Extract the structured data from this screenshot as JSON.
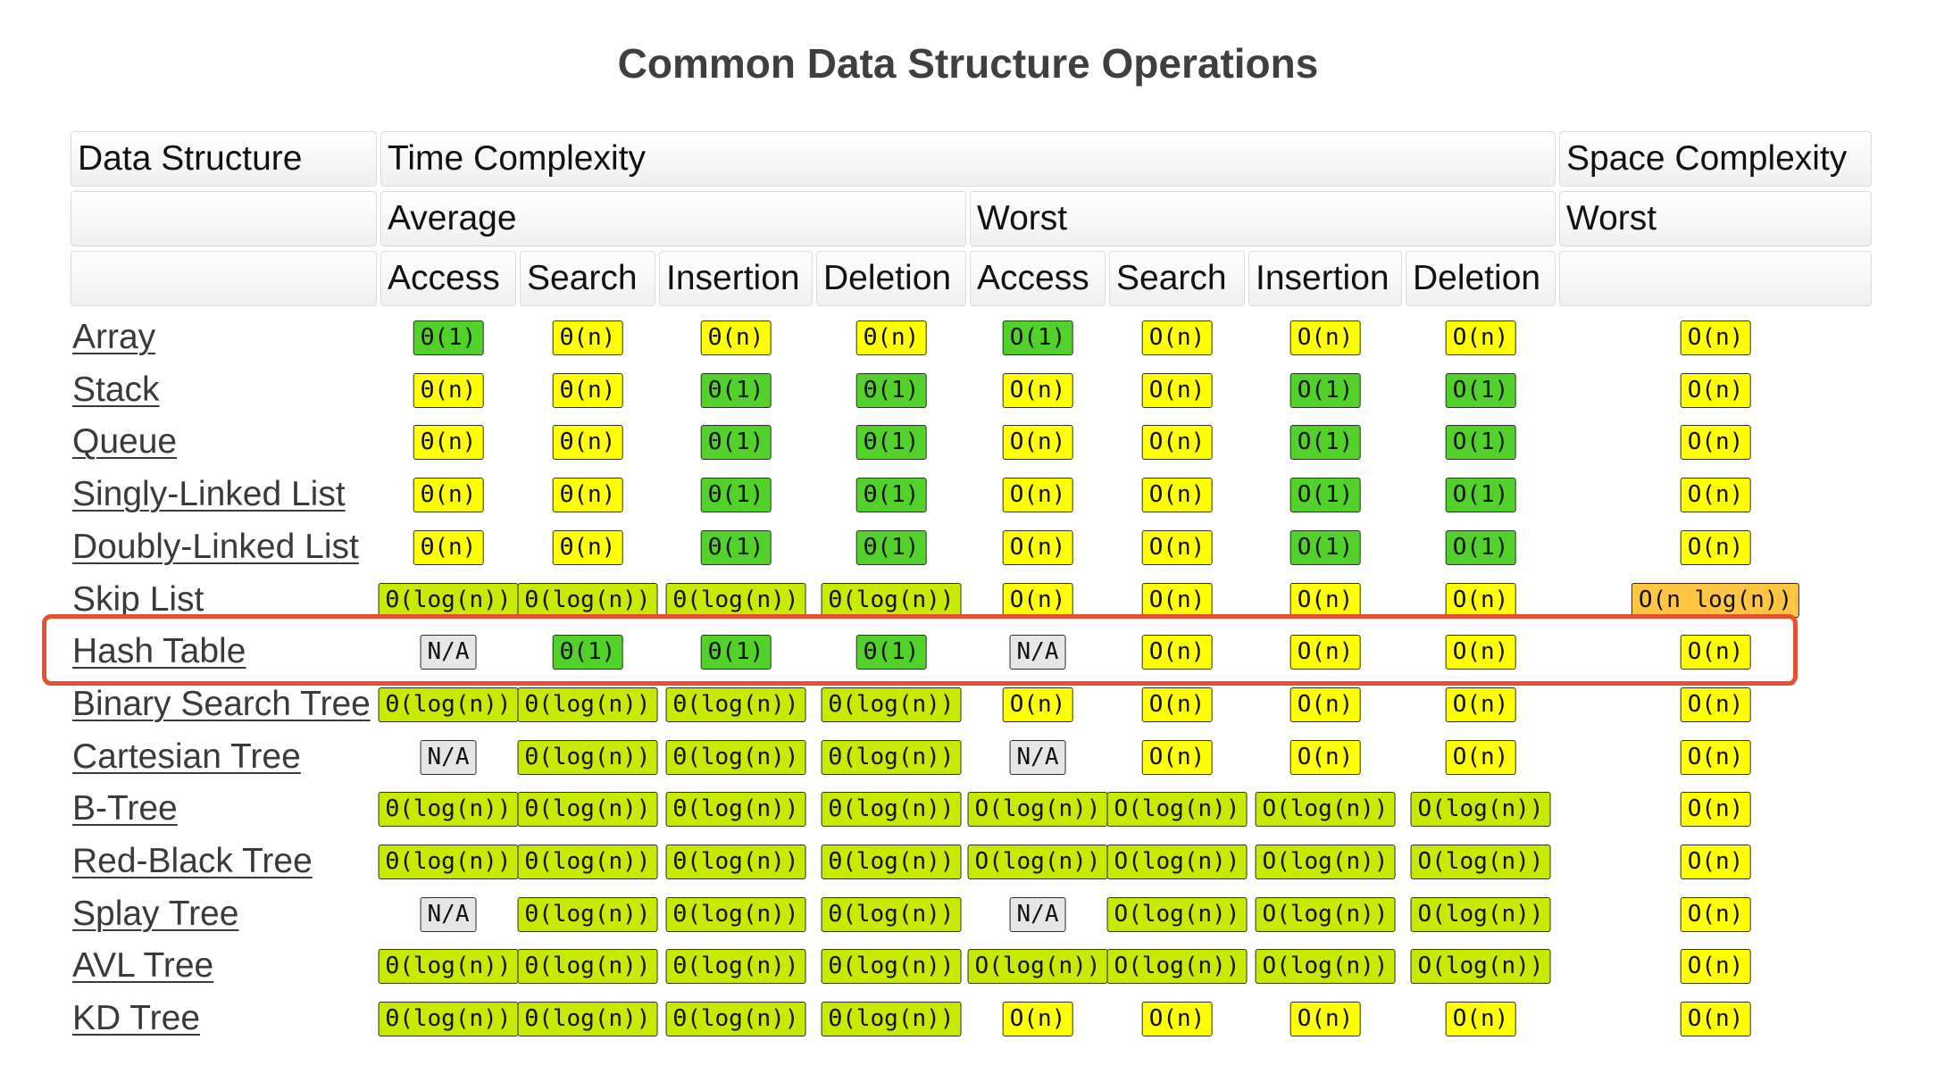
{
  "title": "Common Data Structure Operations",
  "header": {
    "data_structure": "Data Structure",
    "time_complexity": "Time Complexity",
    "space_complexity": "Space Complexity",
    "average": "Average",
    "worst": "Worst",
    "space_worst": "Worst",
    "ops": [
      "Access",
      "Search",
      "Insertion",
      "Deletion",
      "Access",
      "Search",
      "Insertion",
      "Deletion"
    ]
  },
  "rating_colors": {
    "good": "#53d12b",
    "fair": "#ffff00",
    "ok": "#c8ea00",
    "bad": "#ffc543",
    "na": "#e6e6e6"
  },
  "highlight_color": "#e8512f",
  "highlighted_row": "Hash Table",
  "rows": [
    {
      "name": "Array",
      "cells": [
        {
          "text": "Θ(1)",
          "rating": "good"
        },
        {
          "text": "Θ(n)",
          "rating": "fair"
        },
        {
          "text": "Θ(n)",
          "rating": "fair"
        },
        {
          "text": "Θ(n)",
          "rating": "fair"
        },
        {
          "text": "O(1)",
          "rating": "good"
        },
        {
          "text": "O(n)",
          "rating": "fair"
        },
        {
          "text": "O(n)",
          "rating": "fair"
        },
        {
          "text": "O(n)",
          "rating": "fair"
        },
        {
          "text": "O(n)",
          "rating": "fair"
        }
      ]
    },
    {
      "name": "Stack",
      "cells": [
        {
          "text": "Θ(n)",
          "rating": "fair"
        },
        {
          "text": "Θ(n)",
          "rating": "fair"
        },
        {
          "text": "Θ(1)",
          "rating": "good"
        },
        {
          "text": "Θ(1)",
          "rating": "good"
        },
        {
          "text": "O(n)",
          "rating": "fair"
        },
        {
          "text": "O(n)",
          "rating": "fair"
        },
        {
          "text": "O(1)",
          "rating": "good"
        },
        {
          "text": "O(1)",
          "rating": "good"
        },
        {
          "text": "O(n)",
          "rating": "fair"
        }
      ]
    },
    {
      "name": "Queue",
      "cells": [
        {
          "text": "Θ(n)",
          "rating": "fair"
        },
        {
          "text": "Θ(n)",
          "rating": "fair"
        },
        {
          "text": "Θ(1)",
          "rating": "good"
        },
        {
          "text": "Θ(1)",
          "rating": "good"
        },
        {
          "text": "O(n)",
          "rating": "fair"
        },
        {
          "text": "O(n)",
          "rating": "fair"
        },
        {
          "text": "O(1)",
          "rating": "good"
        },
        {
          "text": "O(1)",
          "rating": "good"
        },
        {
          "text": "O(n)",
          "rating": "fair"
        }
      ]
    },
    {
      "name": "Singly-Linked List",
      "cells": [
        {
          "text": "Θ(n)",
          "rating": "fair"
        },
        {
          "text": "Θ(n)",
          "rating": "fair"
        },
        {
          "text": "Θ(1)",
          "rating": "good"
        },
        {
          "text": "Θ(1)",
          "rating": "good"
        },
        {
          "text": "O(n)",
          "rating": "fair"
        },
        {
          "text": "O(n)",
          "rating": "fair"
        },
        {
          "text": "O(1)",
          "rating": "good"
        },
        {
          "text": "O(1)",
          "rating": "good"
        },
        {
          "text": "O(n)",
          "rating": "fair"
        }
      ]
    },
    {
      "name": "Doubly-Linked List",
      "cells": [
        {
          "text": "Θ(n)",
          "rating": "fair"
        },
        {
          "text": "Θ(n)",
          "rating": "fair"
        },
        {
          "text": "Θ(1)",
          "rating": "good"
        },
        {
          "text": "Θ(1)",
          "rating": "good"
        },
        {
          "text": "O(n)",
          "rating": "fair"
        },
        {
          "text": "O(n)",
          "rating": "fair"
        },
        {
          "text": "O(1)",
          "rating": "good"
        },
        {
          "text": "O(1)",
          "rating": "good"
        },
        {
          "text": "O(n)",
          "rating": "fair"
        }
      ]
    },
    {
      "name": "Skip List",
      "cells": [
        {
          "text": "Θ(log(n))",
          "rating": "ok"
        },
        {
          "text": "Θ(log(n))",
          "rating": "ok"
        },
        {
          "text": "Θ(log(n))",
          "rating": "ok"
        },
        {
          "text": "Θ(log(n))",
          "rating": "ok"
        },
        {
          "text": "O(n)",
          "rating": "fair"
        },
        {
          "text": "O(n)",
          "rating": "fair"
        },
        {
          "text": "O(n)",
          "rating": "fair"
        },
        {
          "text": "O(n)",
          "rating": "fair"
        },
        {
          "text": "O(n log(n))",
          "rating": "bad"
        }
      ]
    },
    {
      "name": "Hash Table",
      "cells": [
        {
          "text": "N/A",
          "rating": "na"
        },
        {
          "text": "Θ(1)",
          "rating": "good"
        },
        {
          "text": "Θ(1)",
          "rating": "good"
        },
        {
          "text": "Θ(1)",
          "rating": "good"
        },
        {
          "text": "N/A",
          "rating": "na"
        },
        {
          "text": "O(n)",
          "rating": "fair"
        },
        {
          "text": "O(n)",
          "rating": "fair"
        },
        {
          "text": "O(n)",
          "rating": "fair"
        },
        {
          "text": "O(n)",
          "rating": "fair"
        }
      ]
    },
    {
      "name": "Binary Search Tree",
      "cells": [
        {
          "text": "Θ(log(n))",
          "rating": "ok"
        },
        {
          "text": "Θ(log(n))",
          "rating": "ok"
        },
        {
          "text": "Θ(log(n))",
          "rating": "ok"
        },
        {
          "text": "Θ(log(n))",
          "rating": "ok"
        },
        {
          "text": "O(n)",
          "rating": "fair"
        },
        {
          "text": "O(n)",
          "rating": "fair"
        },
        {
          "text": "O(n)",
          "rating": "fair"
        },
        {
          "text": "O(n)",
          "rating": "fair"
        },
        {
          "text": "O(n)",
          "rating": "fair"
        }
      ]
    },
    {
      "name": "Cartesian Tree",
      "cells": [
        {
          "text": "N/A",
          "rating": "na"
        },
        {
          "text": "Θ(log(n))",
          "rating": "ok"
        },
        {
          "text": "Θ(log(n))",
          "rating": "ok"
        },
        {
          "text": "Θ(log(n))",
          "rating": "ok"
        },
        {
          "text": "N/A",
          "rating": "na"
        },
        {
          "text": "O(n)",
          "rating": "fair"
        },
        {
          "text": "O(n)",
          "rating": "fair"
        },
        {
          "text": "O(n)",
          "rating": "fair"
        },
        {
          "text": "O(n)",
          "rating": "fair"
        }
      ]
    },
    {
      "name": "B-Tree",
      "cells": [
        {
          "text": "Θ(log(n))",
          "rating": "ok"
        },
        {
          "text": "Θ(log(n))",
          "rating": "ok"
        },
        {
          "text": "Θ(log(n))",
          "rating": "ok"
        },
        {
          "text": "Θ(log(n))",
          "rating": "ok"
        },
        {
          "text": "O(log(n))",
          "rating": "ok"
        },
        {
          "text": "O(log(n))",
          "rating": "ok"
        },
        {
          "text": "O(log(n))",
          "rating": "ok"
        },
        {
          "text": "O(log(n))",
          "rating": "ok"
        },
        {
          "text": "O(n)",
          "rating": "fair"
        }
      ]
    },
    {
      "name": "Red-Black Tree",
      "cells": [
        {
          "text": "Θ(log(n))",
          "rating": "ok"
        },
        {
          "text": "Θ(log(n))",
          "rating": "ok"
        },
        {
          "text": "Θ(log(n))",
          "rating": "ok"
        },
        {
          "text": "Θ(log(n))",
          "rating": "ok"
        },
        {
          "text": "O(log(n))",
          "rating": "ok"
        },
        {
          "text": "O(log(n))",
          "rating": "ok"
        },
        {
          "text": "O(log(n))",
          "rating": "ok"
        },
        {
          "text": "O(log(n))",
          "rating": "ok"
        },
        {
          "text": "O(n)",
          "rating": "fair"
        }
      ]
    },
    {
      "name": "Splay Tree",
      "cells": [
        {
          "text": "N/A",
          "rating": "na"
        },
        {
          "text": "Θ(log(n))",
          "rating": "ok"
        },
        {
          "text": "Θ(log(n))",
          "rating": "ok"
        },
        {
          "text": "Θ(log(n))",
          "rating": "ok"
        },
        {
          "text": "N/A",
          "rating": "na"
        },
        {
          "text": "O(log(n))",
          "rating": "ok"
        },
        {
          "text": "O(log(n))",
          "rating": "ok"
        },
        {
          "text": "O(log(n))",
          "rating": "ok"
        },
        {
          "text": "O(n)",
          "rating": "fair"
        }
      ]
    },
    {
      "name": "AVL Tree",
      "cells": [
        {
          "text": "Θ(log(n))",
          "rating": "ok"
        },
        {
          "text": "Θ(log(n))",
          "rating": "ok"
        },
        {
          "text": "Θ(log(n))",
          "rating": "ok"
        },
        {
          "text": "Θ(log(n))",
          "rating": "ok"
        },
        {
          "text": "O(log(n))",
          "rating": "ok"
        },
        {
          "text": "O(log(n))",
          "rating": "ok"
        },
        {
          "text": "O(log(n))",
          "rating": "ok"
        },
        {
          "text": "O(log(n))",
          "rating": "ok"
        },
        {
          "text": "O(n)",
          "rating": "fair"
        }
      ]
    },
    {
      "name": "KD Tree",
      "cells": [
        {
          "text": "Θ(log(n))",
          "rating": "ok"
        },
        {
          "text": "Θ(log(n))",
          "rating": "ok"
        },
        {
          "text": "Θ(log(n))",
          "rating": "ok"
        },
        {
          "text": "Θ(log(n))",
          "rating": "ok"
        },
        {
          "text": "O(n)",
          "rating": "fair"
        },
        {
          "text": "O(n)",
          "rating": "fair"
        },
        {
          "text": "O(n)",
          "rating": "fair"
        },
        {
          "text": "O(n)",
          "rating": "fair"
        },
        {
          "text": "O(n)",
          "rating": "fair"
        }
      ]
    }
  ]
}
